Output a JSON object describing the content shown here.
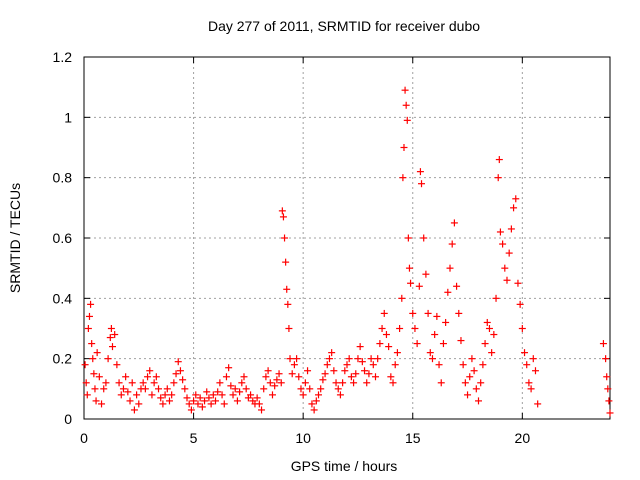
{
  "chart_data": {
    "type": "scatter",
    "title": "Day 277 of 2011, SRMTID for receiver dubo",
    "xlabel": "GPS time / hours",
    "ylabel": "SRMTID / TECUs",
    "xlim": [
      0,
      24
    ],
    "ylim": [
      0,
      1.2
    ],
    "x_ticks": [
      0,
      5,
      10,
      15,
      20
    ],
    "y_ticks": [
      0,
      0.2,
      0.4,
      0.6,
      0.8,
      1,
      1.2
    ],
    "x_tick_labels": [
      "0",
      "5",
      "10",
      "15",
      "20"
    ],
    "y_tick_labels": [
      "0",
      "0.2",
      "0.4",
      "0.6",
      "0.8",
      "1",
      "1.2"
    ],
    "grid": true,
    "marker": "+",
    "series": [
      {
        "name": "SRMTID",
        "color": "#ff0000",
        "points": [
          [
            0.05,
            0.18
          ],
          [
            0.1,
            0.12
          ],
          [
            0.15,
            0.08
          ],
          [
            0.2,
            0.3
          ],
          [
            0.25,
            0.34
          ],
          [
            0.3,
            0.38
          ],
          [
            0.35,
            0.25
          ],
          [
            0.4,
            0.2
          ],
          [
            0.45,
            0.15
          ],
          [
            0.5,
            0.1
          ],
          [
            0.55,
            0.06
          ],
          [
            0.6,
            0.22
          ],
          [
            0.7,
            0.14
          ],
          [
            0.8,
            0.05
          ],
          [
            0.9,
            0.1
          ],
          [
            1.0,
            0.12
          ],
          [
            1.1,
            0.2
          ],
          [
            1.2,
            0.27
          ],
          [
            1.25,
            0.3
          ],
          [
            1.3,
            0.24
          ],
          [
            1.4,
            0.28
          ],
          [
            1.5,
            0.18
          ],
          [
            1.6,
            0.12
          ],
          [
            1.7,
            0.08
          ],
          [
            1.8,
            0.1
          ],
          [
            1.9,
            0.14
          ],
          [
            2.0,
            0.09
          ],
          [
            2.1,
            0.06
          ],
          [
            2.2,
            0.12
          ],
          [
            2.3,
            0.03
          ],
          [
            2.4,
            0.08
          ],
          [
            2.5,
            0.05
          ],
          [
            2.6,
            0.1
          ],
          [
            2.7,
            0.12
          ],
          [
            2.8,
            0.1
          ],
          [
            2.9,
            0.14
          ],
          [
            3.0,
            0.16
          ],
          [
            3.1,
            0.08
          ],
          [
            3.2,
            0.12
          ],
          [
            3.3,
            0.14
          ],
          [
            3.4,
            0.1
          ],
          [
            3.5,
            0.07
          ],
          [
            3.6,
            0.05
          ],
          [
            3.7,
            0.08
          ],
          [
            3.8,
            0.1
          ],
          [
            3.9,
            0.06
          ],
          [
            4.0,
            0.08
          ],
          [
            4.1,
            0.12
          ],
          [
            4.2,
            0.15
          ],
          [
            4.3,
            0.19
          ],
          [
            4.4,
            0.16
          ],
          [
            4.5,
            0.13
          ],
          [
            4.6,
            0.1
          ],
          [
            4.7,
            0.07
          ],
          [
            4.8,
            0.05
          ],
          [
            4.9,
            0.03
          ],
          [
            5.0,
            0.06
          ],
          [
            5.1,
            0.08
          ],
          [
            5.2,
            0.05
          ],
          [
            5.3,
            0.07
          ],
          [
            5.4,
            0.04
          ],
          [
            5.5,
            0.06
          ],
          [
            5.6,
            0.09
          ],
          [
            5.7,
            0.07
          ],
          [
            5.8,
            0.05
          ],
          [
            5.9,
            0.08
          ],
          [
            6.0,
            0.06
          ],
          [
            6.1,
            0.09
          ],
          [
            6.2,
            0.12
          ],
          [
            6.3,
            0.08
          ],
          [
            6.4,
            0.05
          ],
          [
            6.5,
            0.14
          ],
          [
            6.6,
            0.17
          ],
          [
            6.7,
            0.11
          ],
          [
            6.8,
            0.08
          ],
          [
            6.9,
            0.1
          ],
          [
            7.0,
            0.06
          ],
          [
            7.1,
            0.09
          ],
          [
            7.2,
            0.12
          ],
          [
            7.3,
            0.14
          ],
          [
            7.4,
            0.1
          ],
          [
            7.5,
            0.07
          ],
          [
            7.6,
            0.08
          ],
          [
            7.7,
            0.06
          ],
          [
            7.8,
            0.05
          ],
          [
            7.9,
            0.07
          ],
          [
            8.0,
            0.05
          ],
          [
            8.1,
            0.03
          ],
          [
            8.2,
            0.1
          ],
          [
            8.3,
            0.14
          ],
          [
            8.4,
            0.16
          ],
          [
            8.5,
            0.12
          ],
          [
            8.6,
            0.08
          ],
          [
            8.7,
            0.11
          ],
          [
            8.8,
            0.13
          ],
          [
            8.9,
            0.15
          ],
          [
            9.0,
            0.12
          ],
          [
            9.05,
            0.69
          ],
          [
            9.1,
            0.67
          ],
          [
            9.15,
            0.6
          ],
          [
            9.2,
            0.52
          ],
          [
            9.25,
            0.43
          ],
          [
            9.3,
            0.38
          ],
          [
            9.35,
            0.3
          ],
          [
            9.4,
            0.2
          ],
          [
            9.5,
            0.15
          ],
          [
            9.6,
            0.18
          ],
          [
            9.7,
            0.2
          ],
          [
            9.8,
            0.14
          ],
          [
            9.9,
            0.1
          ],
          [
            10.0,
            0.08
          ],
          [
            10.1,
            0.12
          ],
          [
            10.2,
            0.16
          ],
          [
            10.3,
            0.1
          ],
          [
            10.4,
            0.05
          ],
          [
            10.5,
            0.03
          ],
          [
            10.6,
            0.06
          ],
          [
            10.7,
            0.08
          ],
          [
            10.8,
            0.1
          ],
          [
            10.9,
            0.13
          ],
          [
            11.0,
            0.15
          ],
          [
            11.1,
            0.18
          ],
          [
            11.2,
            0.2
          ],
          [
            11.3,
            0.22
          ],
          [
            11.4,
            0.16
          ],
          [
            11.5,
            0.12
          ],
          [
            11.6,
            0.1
          ],
          [
            11.7,
            0.08
          ],
          [
            11.8,
            0.12
          ],
          [
            11.9,
            0.16
          ],
          [
            12.0,
            0.18
          ],
          [
            12.1,
            0.2
          ],
          [
            12.2,
            0.14
          ],
          [
            12.3,
            0.12
          ],
          [
            12.4,
            0.15
          ],
          [
            12.5,
            0.2
          ],
          [
            12.6,
            0.24
          ],
          [
            12.7,
            0.19
          ],
          [
            12.8,
            0.16
          ],
          [
            12.9,
            0.12
          ],
          [
            13.0,
            0.15
          ],
          [
            13.1,
            0.2
          ],
          [
            13.2,
            0.18
          ],
          [
            13.3,
            0.14
          ],
          [
            13.4,
            0.2
          ],
          [
            13.5,
            0.25
          ],
          [
            13.6,
            0.3
          ],
          [
            13.7,
            0.35
          ],
          [
            13.8,
            0.28
          ],
          [
            13.9,
            0.24
          ],
          [
            14.0,
            0.14
          ],
          [
            14.1,
            0.12
          ],
          [
            14.2,
            0.18
          ],
          [
            14.3,
            0.22
          ],
          [
            14.4,
            0.3
          ],
          [
            14.5,
            0.4
          ],
          [
            14.55,
            0.8
          ],
          [
            14.6,
            0.9
          ],
          [
            14.65,
            1.09
          ],
          [
            14.7,
            1.04
          ],
          [
            14.75,
            0.99
          ],
          [
            14.8,
            0.6
          ],
          [
            14.85,
            0.5
          ],
          [
            14.9,
            0.45
          ],
          [
            15.0,
            0.35
          ],
          [
            15.1,
            0.3
          ],
          [
            15.2,
            0.25
          ],
          [
            15.3,
            0.44
          ],
          [
            15.35,
            0.82
          ],
          [
            15.4,
            0.78
          ],
          [
            15.5,
            0.6
          ],
          [
            15.6,
            0.48
          ],
          [
            15.7,
            0.35
          ],
          [
            15.8,
            0.22
          ],
          [
            15.9,
            0.2
          ],
          [
            16.0,
            0.28
          ],
          [
            16.1,
            0.34
          ],
          [
            16.2,
            0.18
          ],
          [
            16.3,
            0.12
          ],
          [
            16.4,
            0.25
          ],
          [
            16.5,
            0.32
          ],
          [
            16.6,
            0.42
          ],
          [
            16.7,
            0.5
          ],
          [
            16.8,
            0.58
          ],
          [
            16.9,
            0.65
          ],
          [
            17.0,
            0.44
          ],
          [
            17.1,
            0.35
          ],
          [
            17.2,
            0.26
          ],
          [
            17.3,
            0.18
          ],
          [
            17.4,
            0.12
          ],
          [
            17.5,
            0.08
          ],
          [
            17.6,
            0.14
          ],
          [
            17.7,
            0.2
          ],
          [
            17.8,
            0.16
          ],
          [
            17.9,
            0.1
          ],
          [
            18.0,
            0.06
          ],
          [
            18.1,
            0.12
          ],
          [
            18.2,
            0.18
          ],
          [
            18.3,
            0.25
          ],
          [
            18.4,
            0.32
          ],
          [
            18.5,
            0.3
          ],
          [
            18.6,
            0.22
          ],
          [
            18.7,
            0.28
          ],
          [
            18.8,
            0.4
          ],
          [
            18.9,
            0.8
          ],
          [
            18.95,
            0.86
          ],
          [
            19.0,
            0.62
          ],
          [
            19.1,
            0.58
          ],
          [
            19.2,
            0.5
          ],
          [
            19.3,
            0.46
          ],
          [
            19.4,
            0.55
          ],
          [
            19.5,
            0.63
          ],
          [
            19.6,
            0.7
          ],
          [
            19.7,
            0.73
          ],
          [
            19.8,
            0.45
          ],
          [
            19.9,
            0.38
          ],
          [
            20.0,
            0.3
          ],
          [
            20.1,
            0.22
          ],
          [
            20.2,
            0.18
          ],
          [
            20.3,
            0.12
          ],
          [
            20.4,
            0.1
          ],
          [
            20.5,
            0.2
          ],
          [
            20.6,
            0.16
          ],
          [
            20.7,
            0.05
          ],
          [
            23.7,
            0.25
          ],
          [
            23.8,
            0.2
          ],
          [
            23.85,
            0.14
          ],
          [
            23.9,
            0.1
          ],
          [
            23.95,
            0.06
          ],
          [
            24.0,
            0.02
          ]
        ]
      }
    ]
  }
}
